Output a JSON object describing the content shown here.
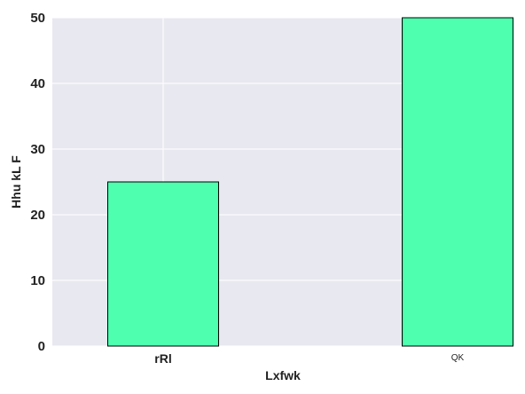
{
  "chart_data": {
    "type": "bar",
    "title": "",
    "xlabel": "Lxfwk",
    "ylabel": "Hhu kL F",
    "categories": [
      "rRl",
      "QK"
    ],
    "values": [
      25,
      50
    ],
    "ylim": [
      0,
      50
    ],
    "yticks": [
      "0",
      "10",
      "20",
      "30",
      "40",
      "50"
    ],
    "grid": true,
    "bar_color": "#4dffaf",
    "bar_edge_color": "#000000",
    "background_color": "#e8e8f0",
    "grid_color": "#ffffff"
  }
}
